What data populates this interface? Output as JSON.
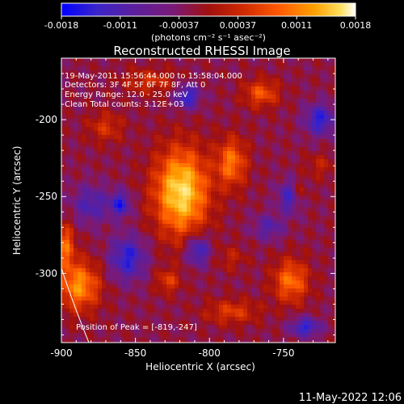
{
  "colorbar": {
    "ticks": [
      "-0.0018",
      "-0.0011",
      "-0.00037",
      "0.00037",
      "0.0011",
      "0.0018"
    ],
    "unit_label": "(photons cm⁻² s⁻¹ asec⁻²)"
  },
  "info": {
    "time_range": "19-May-2011 15:56:44.000 to 15:58:04.000",
    "detectors": "Detectors: 3F 4F 5F 6F 7F 8F, Att 0",
    "energy": "Energy Range: 12.0 - 25.0 keV",
    "clean": "Clean      Total counts: 3.12E+03",
    "peak": "Position of Peak = [-819,-247]"
  },
  "footer": {
    "timestamp": "11-May-2022 12:06"
  },
  "colors": {
    "background": "#000000",
    "text": "#ffffff",
    "colormap": [
      "#0000ff",
      "#3a24c8",
      "#5c1f9c",
      "#7a1a78",
      "#a0100e",
      "#d02a00",
      "#ff5a00",
      "#ffa000",
      "#ffe060",
      "#ffffff"
    ]
  },
  "chart_data": {
    "type": "heatmap",
    "title": "Reconstructed RHESSI Image",
    "xlabel": "Heliocentric X (arcsec)",
    "ylabel": "Heliocentric Y (arcsec)",
    "xlim": [
      -900,
      -715
    ],
    "ylim": [
      -345,
      -160
    ],
    "x_ticks": [
      -900,
      -850,
      -800,
      -750
    ],
    "y_ticks": [
      -300,
      -250,
      -200
    ],
    "x_tick_labels": [
      "-900",
      "-850",
      "-800",
      "-750"
    ],
    "y_tick_labels": [
      "-300",
      "-250",
      "-200"
    ],
    "colorbar_range": [
      -0.0018,
      0.0018
    ],
    "peak": {
      "x": -819,
      "y": -247
    },
    "sources": [
      {
        "x": -819,
        "y": -247,
        "rx": 18,
        "ry": 28,
        "value": 0.0018
      },
      {
        "x": -888,
        "y": -308,
        "rx": 14,
        "ry": 16,
        "value": 0.0013
      },
      {
        "x": -897,
        "y": -282,
        "rx": 6,
        "ry": 14,
        "value": 0.001
      },
      {
        "x": -785,
        "y": -228,
        "rx": 10,
        "ry": 16,
        "value": 0.0011
      },
      {
        "x": -765,
        "y": -183,
        "rx": 12,
        "ry": 9,
        "value": 0.0009
      },
      {
        "x": -840,
        "y": -175,
        "rx": 18,
        "ry": 8,
        "value": 0.0006
      },
      {
        "x": -870,
        "y": -205,
        "rx": 12,
        "ry": 10,
        "value": 0.0006
      },
      {
        "x": -745,
        "y": -305,
        "rx": 12,
        "ry": 14,
        "value": 0.0011
      },
      {
        "x": -740,
        "y": -248,
        "rx": 6,
        "ry": 8,
        "value": 0.0007
      },
      {
        "x": -828,
        "y": -305,
        "rx": 8,
        "ry": 8,
        "value": 0.0007
      },
      {
        "x": -785,
        "y": -325,
        "rx": 18,
        "ry": 8,
        "value": 0.0007
      },
      {
        "x": -785,
        "y": -290,
        "rx": 10,
        "ry": 8,
        "value": 0.0004
      },
      {
        "x": -725,
        "y": -230,
        "rx": 10,
        "ry": 8,
        "value": 0.0004
      },
      {
        "x": -860,
        "y": -255,
        "rx": 7,
        "ry": 8,
        "value": -0.0011
      },
      {
        "x": -880,
        "y": -255,
        "rx": 12,
        "ry": 12,
        "value": -0.0008
      },
      {
        "x": -855,
        "y": -290,
        "rx": 12,
        "ry": 14,
        "value": -0.0011
      },
      {
        "x": -808,
        "y": -285,
        "rx": 8,
        "ry": 10,
        "value": -0.0011
      },
      {
        "x": -815,
        "y": -185,
        "rx": 8,
        "ry": 8,
        "value": -0.0011
      },
      {
        "x": -745,
        "y": -250,
        "rx": 8,
        "ry": 10,
        "value": -0.0011
      },
      {
        "x": -760,
        "y": -270,
        "rx": 10,
        "ry": 8,
        "value": -0.0007
      },
      {
        "x": -725,
        "y": -200,
        "rx": 10,
        "ry": 10,
        "value": -0.0011
      },
      {
        "x": -735,
        "y": -335,
        "rx": 10,
        "ry": 6,
        "value": -0.0011
      }
    ]
  }
}
